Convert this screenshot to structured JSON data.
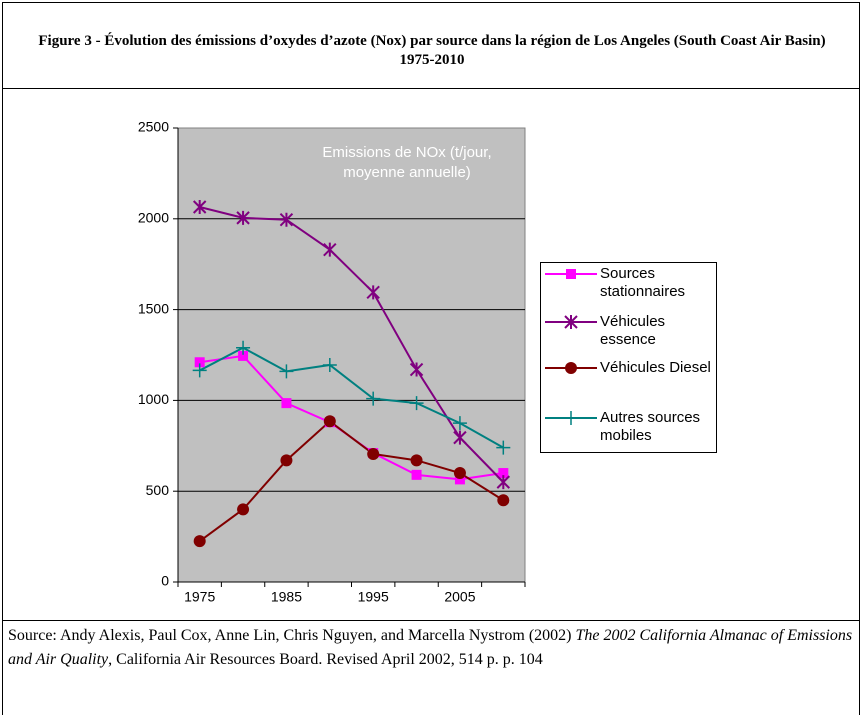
{
  "chart_data": {
    "type": "line",
    "title": "Figure 3 - Évolution des émissions d’oxydes d’azote (Nox) par source dans la région de Los Angeles (South Coast Air Basin) 1975-2010",
    "annotation": "Emissions de NOx (t/jour, moyenne annuelle)",
    "categories": [
      "1975",
      null,
      "1985",
      null,
      "1995",
      null,
      "2005",
      null
    ],
    "series": [
      {
        "name": "Sources stationnaires",
        "color": "#ff00ff",
        "marker": "square",
        "values": [
          1210,
          1245,
          985,
          880,
          710,
          590,
          565,
          600
        ]
      },
      {
        "name": "Véhicules essence",
        "color": "#800080",
        "marker": "star",
        "values": [
          2065,
          2005,
          1995,
          1830,
          1595,
          1170,
          795,
          550
        ]
      },
      {
        "name": "Véhicules Diesel",
        "color": "#800000",
        "marker": "circle",
        "values": [
          225,
          400,
          670,
          885,
          705,
          670,
          600,
          450
        ]
      },
      {
        "name": "Autres sources mobiles",
        "color": "#008080",
        "marker": "plus",
        "values": [
          1165,
          1290,
          1160,
          1195,
          1010,
          985,
          875,
          740
        ]
      }
    ],
    "ylim": [
      0,
      2500
    ],
    "yticks": [
      0,
      500,
      1000,
      1500,
      2000,
      2500
    ],
    "grid": true,
    "legend": "right",
    "source": {
      "before": "Source: Andy Alexis, Paul Cox, Anne Lin, Chris Nguyen, and Marcella Nystrom (2002) ",
      "italic": "The 2002 California Almanac of Emissions and Air Quality",
      "after": ", California Air Resources Board. Revised April 2002, 514 p. p. 104"
    }
  }
}
